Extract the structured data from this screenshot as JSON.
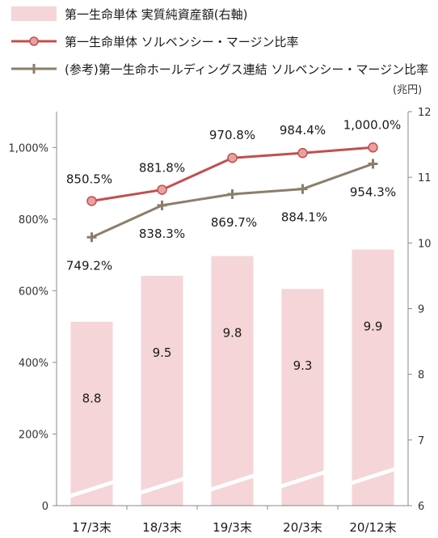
{
  "chart_data": {
    "type": "bar",
    "categories": [
      "17/3末",
      "18/3末",
      "19/3末",
      "20/3末",
      "20/12末"
    ],
    "bar_series": {
      "name": "第一生命単体 実質純資産額(右軸)",
      "values": [
        8.8,
        9.5,
        9.8,
        9.3,
        9.9
      ],
      "labels": [
        "8.8",
        "9.5",
        "9.8",
        "9.3",
        "9.9"
      ],
      "axis": "right",
      "color": "#f5d5d7"
    },
    "line_series": [
      {
        "name": "第一生命単体 ソルベンシー・マージン比率",
        "values": [
          850.5,
          881.8,
          970.8,
          984.4,
          1000.0
        ],
        "labels": [
          "850.5%",
          "881.8%",
          "970.8%",
          "984.4%",
          "1,000.0%"
        ],
        "axis": "left",
        "color": "#c0504d",
        "marker": "circle"
      },
      {
        "name": "(参考)第一生命ホールディングス連結 ソルベンシー・マージン比率",
        "values": [
          749.2,
          838.3,
          869.7,
          884.1,
          954.3
        ],
        "labels": [
          "749.2%",
          "838.3%",
          "869.7%",
          "884.1%",
          "954.3%"
        ],
        "axis": "left",
        "color": "#8c7e6b",
        "marker": "plus"
      }
    ],
    "left_axis": {
      "ylim": [
        0,
        1100
      ],
      "ticks": [
        0,
        200,
        400,
        600,
        800,
        1000
      ],
      "tick_labels": [
        "0",
        "200%",
        "400%",
        "600%",
        "800%",
        "1,000%"
      ]
    },
    "right_axis": {
      "ylim": [
        6,
        12
      ],
      "ticks": [
        6,
        7,
        8,
        9,
        10,
        11,
        12
      ],
      "tick_labels": [
        "6",
        "7",
        "8",
        "9",
        "10",
        "11",
        "12"
      ],
      "unit": "(兆円)"
    },
    "axis_break": true,
    "legend_position": "top-left",
    "grid": false
  }
}
